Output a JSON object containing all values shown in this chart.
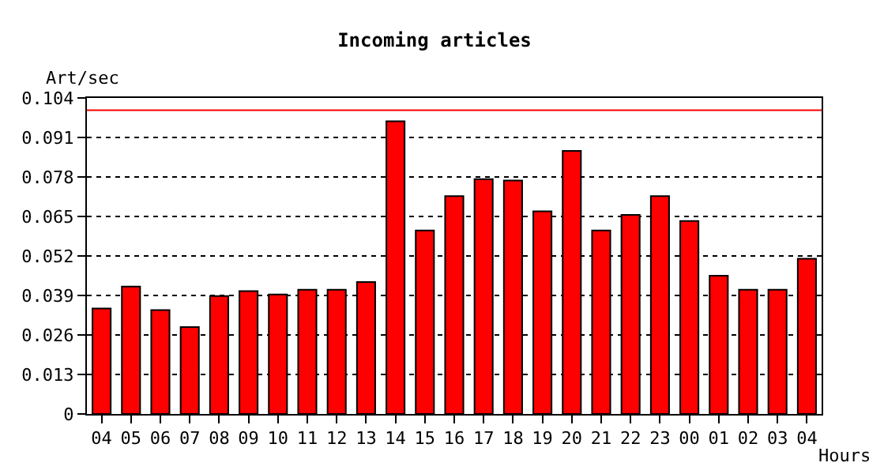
{
  "chart_data": {
    "type": "bar",
    "title": "Incoming articles",
    "xlabel": "Hours",
    "ylabel": "Art/sec",
    "categories": [
      "04",
      "05",
      "06",
      "07",
      "08",
      "09",
      "10",
      "11",
      "12",
      "13",
      "14",
      "15",
      "16",
      "17",
      "18",
      "19",
      "20",
      "21",
      "22",
      "23",
      "00",
      "01",
      "02",
      "03",
      "04"
    ],
    "values": [
      0.0347,
      0.0419,
      0.0342,
      0.0286,
      0.0388,
      0.0404,
      0.0393,
      0.0409,
      0.0409,
      0.0434,
      0.0963,
      0.0604,
      0.0717,
      0.0773,
      0.0768,
      0.0667,
      0.0866,
      0.0604,
      0.0655,
      0.0717,
      0.0635,
      0.0455,
      0.0409,
      0.0409,
      0.0511
    ],
    "color": "#ff0000",
    "ylim": [
      0,
      0.104
    ],
    "yticks": [
      {
        "value": 0,
        "label": "0"
      },
      0.013,
      0.026,
      0.039,
      0.052,
      0.065,
      0.078,
      0.091,
      0.104
    ],
    "grid": "y",
    "ref_lines": [
      {
        "axis": "y",
        "value": 0.1,
        "label": null,
        "color": "#ff0000"
      }
    ]
  }
}
